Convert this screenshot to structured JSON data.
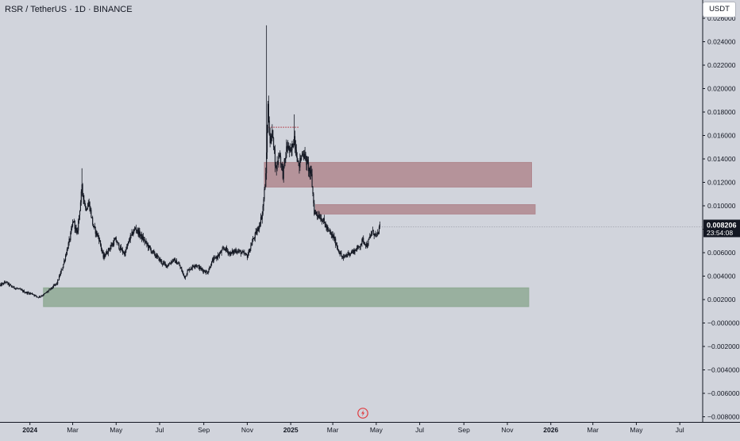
{
  "header": {
    "symbol_line": "RSR / TetherUS · 1D · BINANCE",
    "currency_button": "USDT"
  },
  "price_tag": {
    "value": "0.008206",
    "countdown": "23:54:08",
    "color": "#131722"
  },
  "colors": {
    "background": "#d1d4dc",
    "candle": "#131722",
    "resistance_zone": "#b0878e",
    "support_zone": "#8fa994",
    "dotted_line": "#b22833",
    "axis_text": "#131722"
  },
  "icons": [
    "tradingview-logo-icon"
  ],
  "chart_data": {
    "type": "candlestick",
    "title": "RSR / TetherUS · 1D · BINANCE",
    "xlabel": "",
    "ylabel": "",
    "y_axis_side": "right",
    "ylim": [
      -0.0081,
      0.0262
    ],
    "grid": false,
    "y_ticks": [
      "0.024000",
      "0.022000",
      "0.020000",
      "0.018000",
      "0.016000",
      "0.014000",
      "0.012000",
      "0.010000",
      "0.008000",
      "0.006000",
      "0.004000",
      "0.002000",
      "−0.000000",
      "−0.002000",
      "−0.004000",
      "−0.006000",
      "−0.008000"
    ],
    "y_tick_values": [
      0.024,
      0.022,
      0.02,
      0.018,
      0.016,
      0.014,
      0.012,
      0.01,
      0.008,
      0.006,
      0.004,
      0.002,
      0,
      -0.002,
      -0.004,
      -0.006,
      -0.008
    ],
    "x_ticks": [
      "2024",
      "Mar",
      "May",
      "Jul",
      "Sep",
      "Nov",
      "2025",
      "Mar",
      "May",
      "Jul",
      "Sep",
      "Nov",
      "2026",
      "Mar",
      "May",
      "Jul"
    ],
    "x_tick_dates": [
      "2024-01-01",
      "2024-03-01",
      "2024-05-01",
      "2024-07-01",
      "2024-09-01",
      "2024-11-01",
      "2025-01-01",
      "2025-03-01",
      "2025-05-01",
      "2025-07-01",
      "2025-09-01",
      "2025-11-01",
      "2026-01-01",
      "2026-03-01",
      "2026-05-01",
      "2026-07-01"
    ],
    "xlim": [
      "2023-11-20",
      "2026-08-01"
    ],
    "last_price": 0.008206,
    "price_path": [
      [
        "2023-11-20",
        0.0032
      ],
      [
        "2023-11-28",
        0.0035
      ],
      [
        "2023-12-06",
        0.0031
      ],
      [
        "2023-12-16",
        0.0029
      ],
      [
        "2023-12-26",
        0.0026
      ],
      [
        "2024-01-04",
        0.0025
      ],
      [
        "2024-01-12",
        0.0022
      ],
      [
        "2024-01-20",
        0.0024
      ],
      [
        "2024-01-30",
        0.0029
      ],
      [
        "2024-02-08",
        0.0034
      ],
      [
        "2024-02-16",
        0.0048
      ],
      [
        "2024-02-26",
        0.0072
      ],
      [
        "2024-03-02",
        0.0088
      ],
      [
        "2024-03-07",
        0.0075
      ],
      [
        "2024-03-14",
        0.0115
      ],
      [
        "2024-03-19",
        0.0098
      ],
      [
        "2024-03-24",
        0.0102
      ],
      [
        "2024-03-30",
        0.0082
      ],
      [
        "2024-04-07",
        0.0072
      ],
      [
        "2024-04-13",
        0.0056
      ],
      [
        "2024-04-22",
        0.0064
      ],
      [
        "2024-04-30",
        0.0071
      ],
      [
        "2024-05-06",
        0.0064
      ],
      [
        "2024-05-13",
        0.0059
      ],
      [
        "2024-05-20",
        0.0072
      ],
      [
        "2024-05-28",
        0.0081
      ],
      [
        "2024-06-05",
        0.0074
      ],
      [
        "2024-06-12",
        0.0068
      ],
      [
        "2024-06-20",
        0.0061
      ],
      [
        "2024-06-28",
        0.0056
      ],
      [
        "2024-07-05",
        0.0051
      ],
      [
        "2024-07-12",
        0.0049
      ],
      [
        "2024-07-20",
        0.0054
      ],
      [
        "2024-07-28",
        0.005
      ],
      [
        "2024-08-05",
        0.0039
      ],
      [
        "2024-08-10",
        0.0045
      ],
      [
        "2024-08-20",
        0.005
      ],
      [
        "2024-08-28",
        0.0046
      ],
      [
        "2024-09-06",
        0.0043
      ],
      [
        "2024-09-13",
        0.0053
      ],
      [
        "2024-09-22",
        0.0058
      ],
      [
        "2024-09-30",
        0.0064
      ],
      [
        "2024-10-08",
        0.0059
      ],
      [
        "2024-10-16",
        0.0062
      ],
      [
        "2024-10-24",
        0.006
      ],
      [
        "2024-11-01",
        0.0057
      ],
      [
        "2024-11-09",
        0.0071
      ],
      [
        "2024-11-16",
        0.008
      ],
      [
        "2024-11-22",
        0.0093
      ],
      [
        "2024-11-27",
        0.0125
      ],
      [
        "2024-11-30",
        0.0185
      ],
      [
        "2024-12-03",
        0.0155
      ],
      [
        "2024-12-07",
        0.0162
      ],
      [
        "2024-12-11",
        0.013
      ],
      [
        "2024-12-16",
        0.0146
      ],
      [
        "2024-12-21",
        0.0127
      ],
      [
        "2024-12-27",
        0.0152
      ],
      [
        "2025-01-01",
        0.0144
      ],
      [
        "2025-01-06",
        0.0159
      ],
      [
        "2025-01-12",
        0.0133
      ],
      [
        "2025-01-18",
        0.0147
      ],
      [
        "2025-01-24",
        0.0136
      ],
      [
        "2025-01-30",
        0.0125
      ],
      [
        "2025-02-03",
        0.0095
      ],
      [
        "2025-02-09",
        0.0092
      ],
      [
        "2025-02-15",
        0.0088
      ],
      [
        "2025-02-22",
        0.0079
      ],
      [
        "2025-03-02",
        0.0073
      ],
      [
        "2025-03-09",
        0.0062
      ],
      [
        "2025-03-15",
        0.0055
      ],
      [
        "2025-03-22",
        0.0059
      ],
      [
        "2025-03-30",
        0.0061
      ],
      [
        "2025-04-07",
        0.0065
      ],
      [
        "2025-04-12",
        0.0071
      ],
      [
        "2025-04-18",
        0.0066
      ],
      [
        "2025-04-25",
        0.0078
      ],
      [
        "2025-05-02",
        0.0074
      ],
      [
        "2025-05-06",
        0.0082
      ]
    ],
    "wick_highs": [
      [
        "2024-11-28",
        0.0254
      ],
      [
        "2024-03-14",
        0.0132
      ],
      [
        "2025-01-06",
        0.0178
      ]
    ],
    "zones": [
      {
        "name": "resistance-zone-upper",
        "from": "2024-11-25",
        "to": "2025-12-05",
        "y_low": 0.0116,
        "y_high": 0.0137,
        "color": "#b0878e"
      },
      {
        "name": "resistance-zone-lower",
        "from": "2025-02-05",
        "to": "2025-12-10",
        "y_low": 0.0093,
        "y_high": 0.0101,
        "color": "#b0878e"
      },
      {
        "name": "support-zone",
        "from": "2024-01-20",
        "to": "2025-12-01",
        "y_low": 0.0014,
        "y_high": 0.003,
        "color": "#8fa994"
      }
    ],
    "dotted_level": {
      "from": "2024-12-01",
      "to": "2025-01-12",
      "y": 0.0167
    }
  }
}
